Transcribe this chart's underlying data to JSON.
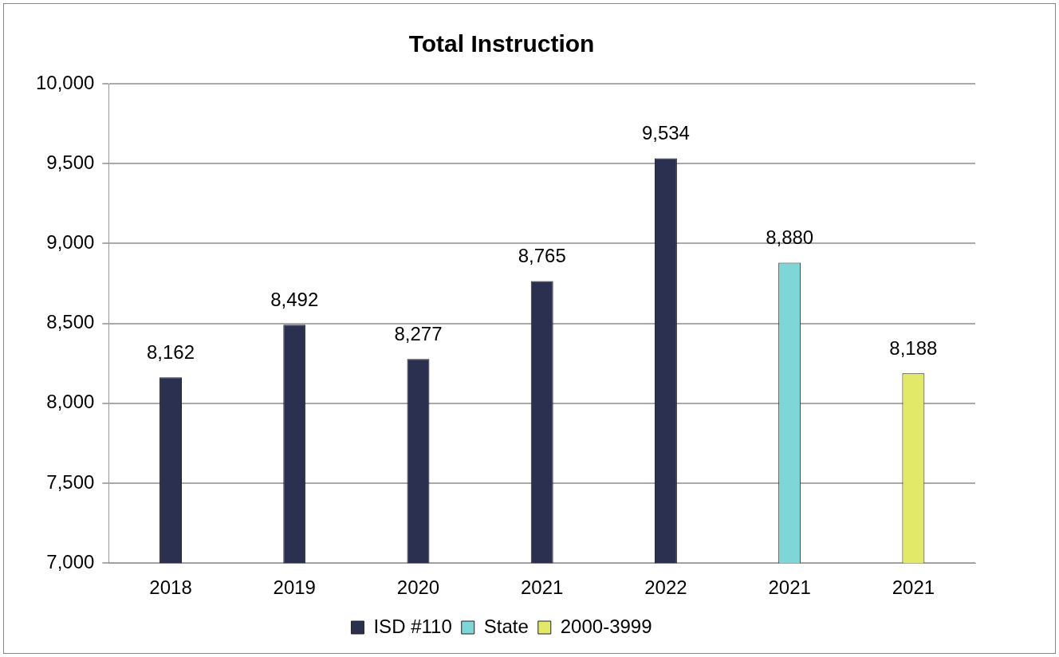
{
  "chart_data": {
    "type": "bar",
    "title": "Total Instruction",
    "categories": [
      "2018",
      "2019",
      "2020",
      "2021",
      "2022",
      "2021",
      "2021"
    ],
    "series": [
      {
        "name": "ISD #110",
        "color": "#2b3050",
        "values": [
          8162,
          8492,
          8277,
          8765,
          9534,
          null,
          null
        ],
        "value_labels": [
          "8,162",
          "8,492",
          "8,277",
          "8,765",
          "9,534",
          null,
          null
        ]
      },
      {
        "name": "State",
        "color": "#7fd6d6",
        "values": [
          null,
          null,
          null,
          null,
          null,
          8880,
          null
        ],
        "value_labels": [
          null,
          null,
          null,
          null,
          null,
          "8,880",
          null
        ]
      },
      {
        "name": "2000-3999",
        "color": "#e2e868",
        "values": [
          null,
          null,
          null,
          null,
          null,
          null,
          8188
        ],
        "value_labels": [
          null,
          null,
          null,
          null,
          null,
          null,
          "8,188"
        ]
      }
    ],
    "ylim": [
      7000,
      10000
    ],
    "yticks": [
      {
        "value": 7000,
        "label": "7,000"
      },
      {
        "value": 7500,
        "label": "7,500"
      },
      {
        "value": 8000,
        "label": "8,000"
      },
      {
        "value": 8500,
        "label": "8,500"
      },
      {
        "value": 9000,
        "label": "9,000"
      },
      {
        "value": 9500,
        "label": "9,500"
      },
      {
        "value": 10000,
        "label": "10,000"
      }
    ],
    "grid": "y",
    "legend": "bottom"
  }
}
